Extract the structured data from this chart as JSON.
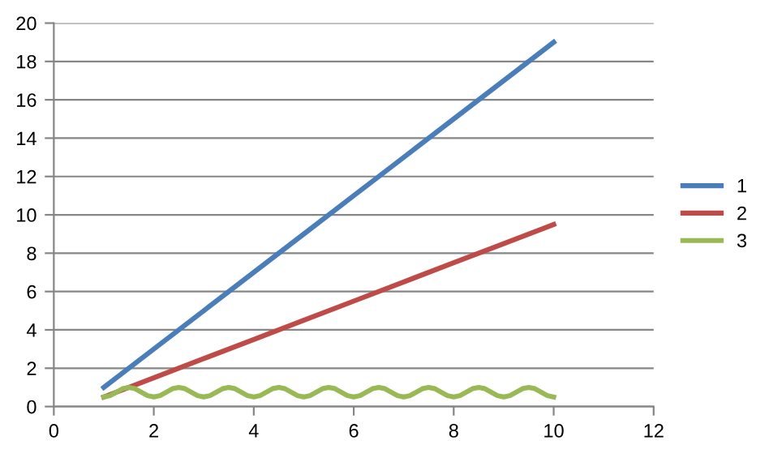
{
  "chart_data": {
    "type": "line",
    "xlim": [
      0,
      12
    ],
    "xticks": [
      0,
      2,
      4,
      6,
      8,
      10,
      12
    ],
    "ylim": [
      0,
      20
    ],
    "yticks": [
      0,
      2,
      4,
      6,
      8,
      10,
      12,
      14,
      16,
      18,
      20
    ],
    "grid": "y",
    "legend": "right",
    "marker": "none",
    "line_style": "solid",
    "series": [
      {
        "name": "1",
        "color": "#4a7ebb",
        "x": [
          1,
          2,
          3,
          4,
          5,
          6,
          7,
          8,
          9,
          10
        ],
        "values": [
          1,
          3,
          5,
          7,
          9,
          11,
          13,
          15,
          17,
          19
        ]
      },
      {
        "name": "2",
        "color": "#be4b48",
        "x": [
          1,
          2,
          3,
          4,
          5,
          6,
          7,
          8,
          9,
          10
        ],
        "values": [
          0.5,
          1.5,
          2.5,
          3.5,
          4.5,
          5.5,
          6.5,
          7.5,
          8.5,
          9.5
        ]
      },
      {
        "name": "3",
        "color": "#98b954",
        "x": [
          1,
          1.125,
          1.25,
          1.375,
          1.5,
          1.625,
          1.75,
          1.875,
          2,
          2.125,
          2.25,
          2.375,
          2.5,
          2.625,
          2.75,
          2.875,
          3,
          3.125,
          3.25,
          3.375,
          3.5,
          3.625,
          3.75,
          3.875,
          4,
          4.125,
          4.25,
          4.375,
          4.5,
          4.625,
          4.75,
          4.875,
          5,
          5.125,
          5.25,
          5.375,
          5.5,
          5.625,
          5.75,
          5.875,
          6,
          6.125,
          6.25,
          6.375,
          6.5,
          6.625,
          6.75,
          6.875,
          7,
          7.125,
          7.25,
          7.375,
          7.5,
          7.625,
          7.75,
          7.875,
          8,
          8.125,
          8.25,
          8.375,
          8.5,
          8.625,
          8.75,
          8.875,
          9,
          9.125,
          9.25,
          9.375,
          9.5,
          9.625,
          9.75,
          9.875,
          10
        ],
        "values": [
          0.5,
          0.57,
          0.75,
          0.93,
          1.0,
          0.93,
          0.75,
          0.57,
          0.5,
          0.57,
          0.75,
          0.93,
          1.0,
          0.93,
          0.75,
          0.57,
          0.5,
          0.57,
          0.75,
          0.93,
          1.0,
          0.93,
          0.75,
          0.57,
          0.5,
          0.57,
          0.75,
          0.93,
          1.0,
          0.93,
          0.75,
          0.57,
          0.5,
          0.57,
          0.75,
          0.93,
          1.0,
          0.93,
          0.75,
          0.57,
          0.5,
          0.57,
          0.75,
          0.93,
          1.0,
          0.93,
          0.75,
          0.57,
          0.5,
          0.57,
          0.75,
          0.93,
          1.0,
          0.93,
          0.75,
          0.57,
          0.5,
          0.57,
          0.75,
          0.93,
          1.0,
          0.93,
          0.75,
          0.57,
          0.5,
          0.57,
          0.75,
          0.93,
          1.0,
          0.93,
          0.75,
          0.57,
          0.5
        ]
      }
    ]
  }
}
